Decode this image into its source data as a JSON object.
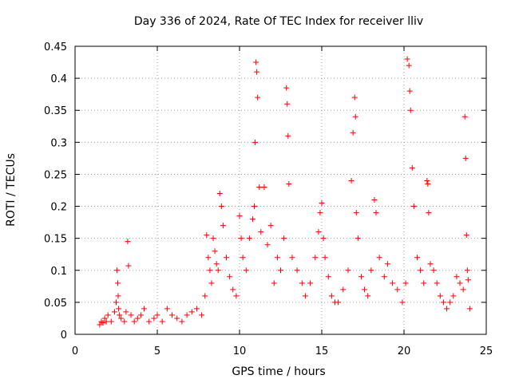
{
  "chart_data": {
    "type": "scatter",
    "title": "Day 336 of 2024, Rate Of TEC Index for receiver lliv",
    "xlabel": "GPS time / hours",
    "ylabel": "ROTI / TECUs",
    "xlim": [
      0,
      25
    ],
    "ylim": [
      0,
      0.45
    ],
    "x_ticks": [
      0,
      5,
      10,
      15,
      20,
      25
    ],
    "y_ticks": [
      0,
      0.05,
      0.1,
      0.15,
      0.2,
      0.25,
      0.3,
      0.35,
      0.4,
      0.45
    ],
    "x_tick_labels": [
      "0",
      "5",
      "10",
      "15",
      "20",
      "25"
    ],
    "y_tick_labels": [
      "0",
      "0.05",
      "0.1",
      "0.15",
      "0.2",
      "0.25",
      "0.3",
      "0.35",
      "0.4",
      "0.45"
    ],
    "grid": true,
    "marker": "+",
    "color": "#ff0000",
    "series": [
      {
        "name": "ROTI",
        "note": "dense scatter; representative points read from the figure",
        "x": [
          1.5,
          1.6,
          1.7,
          1.8,
          1.9,
          2.0,
          2.2,
          2.4,
          2.5,
          2.55,
          2.6,
          2.62,
          2.65,
          2.7,
          2.8,
          3.0,
          3.1,
          3.2,
          3.25,
          3.4,
          3.6,
          3.8,
          4.0,
          4.2,
          4.5,
          4.8,
          5.0,
          5.3,
          5.6,
          5.9,
          6.2,
          6.5,
          6.8,
          7.1,
          7.4,
          7.7,
          7.9,
          8.0,
          8.1,
          8.2,
          8.3,
          8.4,
          8.5,
          8.6,
          8.7,
          8.8,
          8.9,
          9.0,
          9.2,
          9.4,
          9.6,
          9.8,
          10.0,
          10.1,
          10.2,
          10.4,
          10.6,
          10.8,
          10.9,
          10.95,
          11.0,
          11.05,
          11.1,
          11.2,
          11.3,
          11.5,
          11.7,
          11.9,
          12.1,
          12.3,
          12.5,
          12.7,
          12.85,
          12.9,
          12.95,
          13.0,
          13.2,
          13.5,
          13.8,
          14.0,
          14.3,
          14.6,
          14.8,
          14.9,
          15.0,
          15.1,
          15.2,
          15.4,
          15.6,
          15.8,
          16.0,
          16.3,
          16.6,
          16.8,
          16.9,
          17.0,
          17.05,
          17.1,
          17.2,
          17.4,
          17.6,
          17.8,
          18.0,
          18.2,
          18.3,
          18.5,
          18.8,
          19.0,
          19.3,
          19.6,
          19.9,
          20.1,
          20.2,
          20.3,
          20.35,
          20.4,
          20.5,
          20.6,
          20.8,
          21.0,
          21.2,
          21.4,
          21.45,
          21.5,
          21.6,
          21.8,
          22.0,
          22.2,
          22.4,
          22.6,
          22.8,
          23.0,
          23.2,
          23.4,
          23.6,
          23.7,
          23.75,
          23.8,
          23.85,
          23.9,
          24.0
        ],
        "y": [
          0.015,
          0.02,
          0.018,
          0.025,
          0.02,
          0.03,
          0.02,
          0.035,
          0.05,
          0.1,
          0.08,
          0.06,
          0.04,
          0.03,
          0.025,
          0.02,
          0.035,
          0.145,
          0.107,
          0.03,
          0.02,
          0.025,
          0.03,
          0.04,
          0.02,
          0.025,
          0.03,
          0.02,
          0.04,
          0.03,
          0.025,
          0.02,
          0.03,
          0.035,
          0.04,
          0.03,
          0.06,
          0.155,
          0.12,
          0.1,
          0.08,
          0.15,
          0.13,
          0.11,
          0.1,
          0.22,
          0.2,
          0.17,
          0.12,
          0.09,
          0.07,
          0.06,
          0.185,
          0.15,
          0.12,
          0.1,
          0.15,
          0.18,
          0.2,
          0.3,
          0.425,
          0.41,
          0.37,
          0.23,
          0.16,
          0.23,
          0.14,
          0.17,
          0.08,
          0.12,
          0.1,
          0.15,
          0.385,
          0.36,
          0.31,
          0.235,
          0.12,
          0.1,
          0.08,
          0.06,
          0.08,
          0.12,
          0.16,
          0.19,
          0.205,
          0.15,
          0.12,
          0.09,
          0.06,
          0.05,
          0.05,
          0.07,
          0.1,
          0.24,
          0.315,
          0.37,
          0.34,
          0.19,
          0.15,
          0.09,
          0.07,
          0.06,
          0.1,
          0.21,
          0.19,
          0.12,
          0.09,
          0.11,
          0.08,
          0.07,
          0.05,
          0.08,
          0.43,
          0.42,
          0.38,
          0.35,
          0.26,
          0.2,
          0.12,
          0.1,
          0.08,
          0.24,
          0.235,
          0.19,
          0.11,
          0.1,
          0.08,
          0.06,
          0.05,
          0.04,
          0.05,
          0.06,
          0.09,
          0.08,
          0.07,
          0.34,
          0.275,
          0.155,
          0.1,
          0.085,
          0.04
        ]
      }
    ]
  }
}
